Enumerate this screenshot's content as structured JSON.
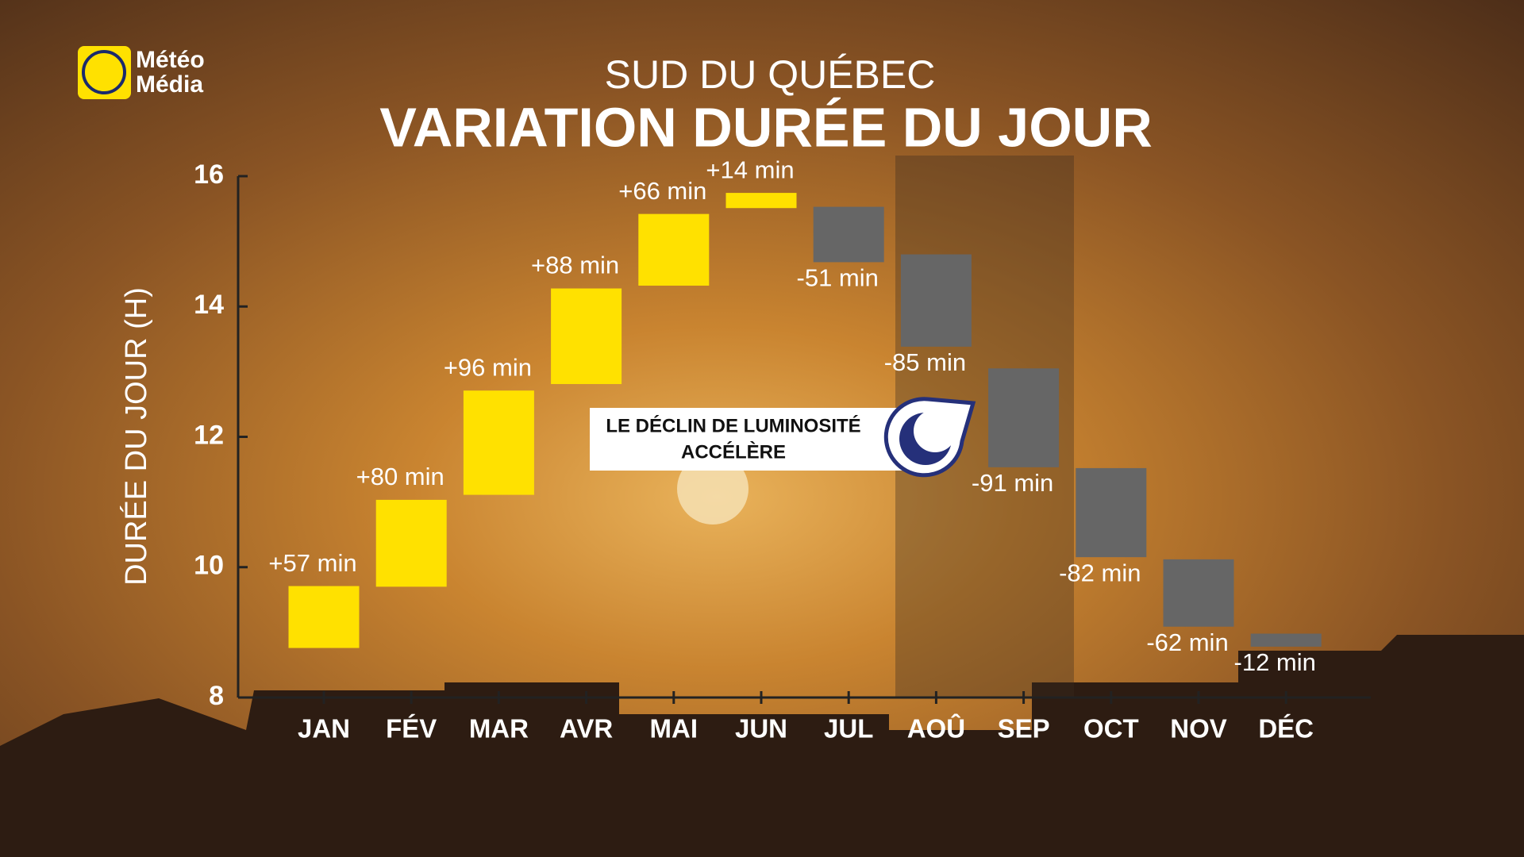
{
  "chart_data": {
    "type": "waterfall",
    "subtitle": "SUD DU QUÉBEC",
    "title": "VARIATION DURÉE DU JOUR",
    "y_label": "DURÉE DU JOUR (H)",
    "categories": [
      "JAN",
      "FÉV",
      "MAR",
      "AVR",
      "MAI",
      "JUN",
      "JUL",
      "AOÛ",
      "SEP",
      "OCT",
      "NOV",
      "DÉC"
    ],
    "start": [
      8.76,
      9.7,
      11.11,
      12.81,
      14.32,
      15.51,
      15.53,
      14.8,
      13.05,
      11.52,
      10.12,
      8.98
    ],
    "values": [
      0.95,
      1.3333,
      1.6,
      1.4667,
      1.1,
      0.2333,
      -0.85,
      -1.4167,
      -1.5167,
      -1.3667,
      -1.0333,
      -0.2
    ],
    "value_labels": [
      "+57 min",
      "+80 min",
      "+96 min",
      "+88 min",
      "+66 min",
      "+14 min",
      "-51 min",
      "-85 min",
      "-91 min",
      "-82 min",
      "-62 min",
      "-12 min"
    ],
    "increase_color": "#ffe100",
    "decrease_color": "#666666",
    "ylim": [
      8,
      16
    ],
    "yticks": [
      8,
      10,
      12,
      14,
      16
    ],
    "annotation": [
      "LE DÉCLIN DE LUMINOSITÉ",
      "ACCÉLÈRE"
    ]
  },
  "logo": [
    "Météo",
    "Média"
  ]
}
